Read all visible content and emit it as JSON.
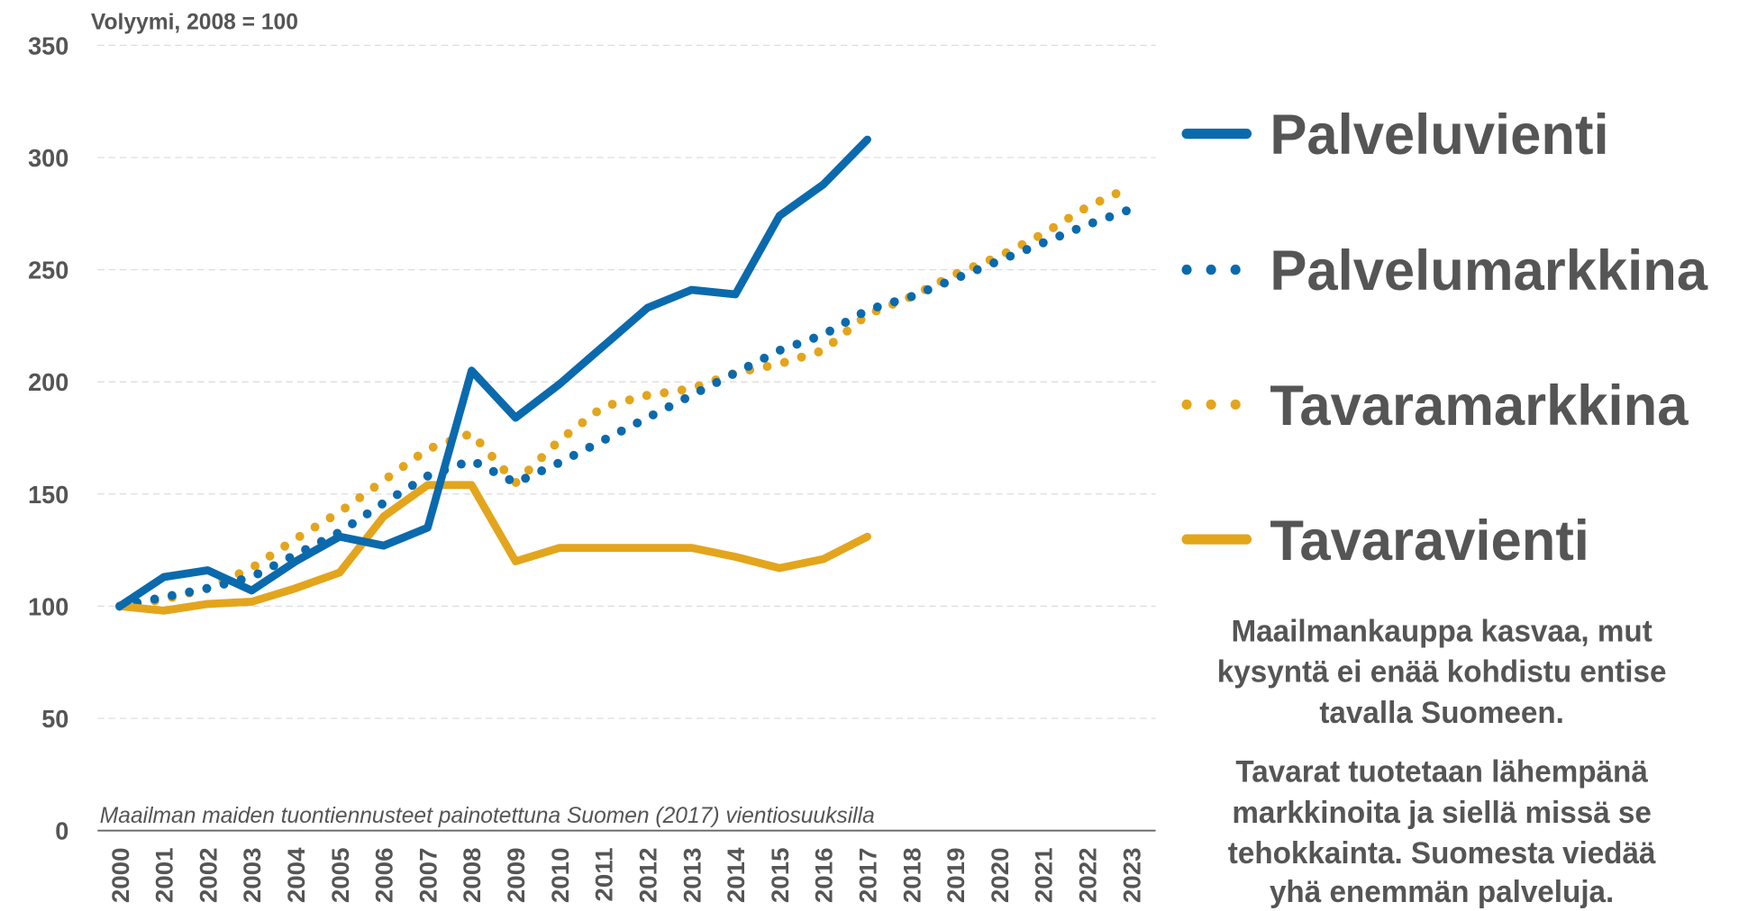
{
  "chart_data": {
    "type": "line",
    "ylabel": "Volyymi, 2008 = 100",
    "note": "Maailman maiden tuontiennusteet painotettuna Suomen (2017) vientiosuuksilla",
    "categories": [
      "2000",
      "2001",
      "2002",
      "2003",
      "2004",
      "2005",
      "2006",
      "2007",
      "2008",
      "2009",
      "2010",
      "2011",
      "2012",
      "2013",
      "2014",
      "2015",
      "2016",
      "2017",
      "2018",
      "2019",
      "2020",
      "2021",
      "2022",
      "2023"
    ],
    "series": [
      {
        "name": "Palveluvienti",
        "color": "#0a6aad",
        "style": "solid",
        "values": [
          100,
          113,
          116,
          107,
          120,
          131,
          127,
          135,
          205,
          184,
          199,
          216,
          233,
          241,
          239,
          274,
          288,
          308,
          null,
          null,
          null,
          null,
          null,
          null
        ]
      },
      {
        "name": "Palvelumarkkina",
        "color": "#0a6aad",
        "style": "dotted",
        "values": [
          100,
          104,
          108,
          113,
          123,
          133,
          146,
          158,
          165,
          155,
          164,
          174,
          184,
          194,
          204,
          214,
          221,
          232,
          238,
          246,
          254,
          262,
          270,
          277
        ]
      },
      {
        "name": "Tavaramarkkina",
        "color": "#e3a51c",
        "style": "dotted",
        "values": [
          100,
          103,
          108,
          117,
          130,
          142,
          156,
          170,
          177,
          155,
          174,
          189,
          194,
          197,
          204,
          208,
          214,
          230,
          238,
          248,
          256,
          266,
          278,
          287
        ]
      },
      {
        "name": "Tavaravienti",
        "color": "#e3a51c",
        "style": "solid",
        "values": [
          100,
          98,
          101,
          102,
          108,
          115,
          140,
          154,
          154,
          120,
          126,
          126,
          126,
          126,
          122,
          117,
          121,
          131,
          null,
          null,
          null,
          null,
          null,
          null
        ]
      }
    ],
    "ylim": [
      0,
      350
    ],
    "yticks": [
      0,
      50,
      100,
      150,
      200,
      250,
      300,
      350
    ],
    "grid": true,
    "annotations": [
      "Maailmankauppa kasvaa, mut",
      "kysyntä ei enää kohdistu entise",
      "tavalla Suomeen.",
      "Tavarat tuotetaan lähempänä",
      "markkinoita ja siellä missä se",
      "tehokkainta. Suomesta viedää",
      "yhä enemmän palveluja."
    ]
  }
}
